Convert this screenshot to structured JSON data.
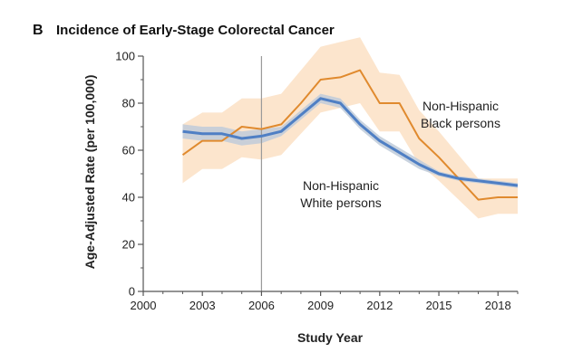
{
  "chart_data": {
    "type": "line",
    "panel_label": "B",
    "title": "Incidence of Early-Stage Colorectal Cancer",
    "xlabel": "Study Year",
    "ylabel": "Age-Adjusted Rate (per 100,000)",
    "xlim": [
      2000,
      2019
    ],
    "ylim": [
      0,
      100
    ],
    "x_ticks": [
      2000,
      2003,
      2006,
      2009,
      2012,
      2015,
      2018
    ],
    "y_ticks": [
      0,
      20,
      40,
      60,
      80,
      100
    ],
    "x_tick_labels": [
      "2000",
      "2003",
      "2006",
      "2009",
      "2012",
      "2015",
      "2018"
    ],
    "y_tick_labels": [
      "0",
      "20",
      "40",
      "60",
      "80",
      "100"
    ],
    "reference_line_x": 2006,
    "x": [
      2002,
      2003,
      2004,
      2005,
      2006,
      2007,
      2008,
      2009,
      2010,
      2011,
      2012,
      2013,
      2014,
      2015,
      2016,
      2017,
      2018,
      2019
    ],
    "series": [
      {
        "name": "Non-Hispanic Black persons",
        "label_lines": [
          "Non-Hispanic",
          "Black persons"
        ],
        "color": "#e08a2e",
        "band_color": "#fbdcbc",
        "values": [
          58,
          64,
          64,
          70,
          69,
          71,
          80,
          90,
          91,
          94,
          80,
          80,
          65,
          57,
          48,
          39,
          40,
          40
        ],
        "lower": [
          46,
          52,
          52,
          57,
          56,
          58,
          67,
          76,
          78,
          80,
          68,
          68,
          54,
          47,
          39,
          31,
          33,
          33
        ],
        "upper": [
          71,
          76,
          76,
          82,
          82,
          84,
          94,
          104,
          106,
          108,
          93,
          92,
          77,
          68,
          58,
          48,
          48,
          48
        ]
      },
      {
        "name": "Non-Hispanic White persons",
        "label_lines": [
          "Non-Hispanic",
          "White persons"
        ],
        "color": "#4f7fc4",
        "band_color": "#bfcbd9",
        "values": [
          68,
          67,
          67,
          65,
          66,
          68,
          75,
          82,
          80,
          71,
          64,
          59,
          54,
          50,
          48,
          47,
          46,
          45
        ],
        "lower": [
          65,
          64,
          64,
          62,
          63,
          66,
          73,
          80,
          78,
          69,
          62,
          57,
          52,
          49,
          47,
          46,
          45,
          44
        ],
        "upper": [
          71,
          70,
          70,
          68,
          69,
          70,
          77,
          84,
          82,
          73,
          66,
          61,
          56,
          51,
          49,
          48,
          47,
          46
        ]
      }
    ]
  }
}
